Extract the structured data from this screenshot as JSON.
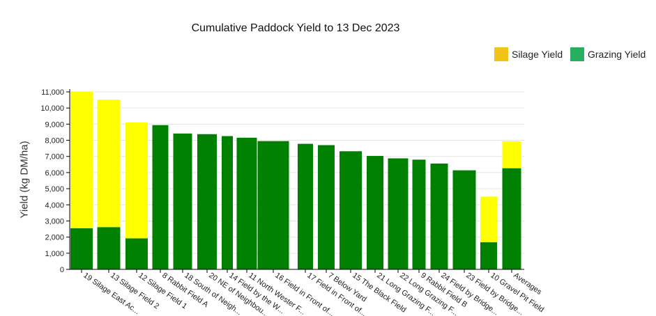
{
  "chart_data": {
    "type": "bar",
    "stacked": true,
    "title": "Cumulative Paddock Yield to 13 Dec 2023",
    "ylabel": "Yield (kg DM/ha)",
    "ylim": [
      0,
      11000
    ],
    "yticks": [
      "0",
      "1,000",
      "2,000",
      "3,000",
      "4,000",
      "5,000",
      "6,000",
      "7,000",
      "8,000",
      "9,000",
      "10,000",
      "11,000"
    ],
    "grid": true,
    "legend_position": "top-right",
    "categories": [
      "19 Silage East Ac...",
      "13 Silage Field 2",
      "12 Silage Field 1",
      "8 Rabbit Field A",
      "18 South of Neigh...",
      "20 NE of Neighbou...",
      "14 Field by the W...",
      "11 North Wester F...",
      "16 Field in Front of...",
      "17 Field in Front of...",
      "7 Below Yard",
      "15 The Black Field",
      "21 Long Grazing F...",
      "22 Long Grazing F...",
      "9 Rabbit Field B",
      "24 Field by Bridge...",
      "23 Field by Bridge...",
      "10 Gravel Pit Field",
      "Averages"
    ],
    "series": [
      {
        "name": "Grazing Yield",
        "color": "#008000",
        "values": [
          2550,
          2620,
          1920,
          8940,
          8420,
          8380,
          8260,
          8160,
          7950,
          7780,
          7700,
          7320,
          7030,
          6880,
          6800,
          6560,
          6140,
          1680,
          6270
        ]
      },
      {
        "name": "Silage Yield",
        "color": "#ffff00",
        "values": [
          8480,
          7900,
          7180,
          0,
          0,
          0,
          0,
          0,
          0,
          0,
          0,
          0,
          0,
          0,
          0,
          0,
          0,
          2830,
          1670
        ]
      }
    ],
    "legend": [
      {
        "name": "Silage Yield",
        "color": "#f0c419"
      },
      {
        "name": "Grazing Yield",
        "color": "#27ae60"
      }
    ]
  }
}
